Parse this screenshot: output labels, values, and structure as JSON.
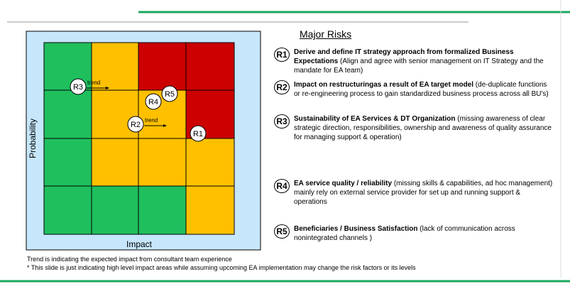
{
  "header": {
    "title": "Major Risks"
  },
  "matrix": {
    "x_label": "Impact",
    "y_label": "Probability",
    "markers": [
      {
        "label": "R3",
        "trend": "trend"
      },
      {
        "label": "R5"
      },
      {
        "label": "R4"
      },
      {
        "label": "R2",
        "trend": "trend"
      },
      {
        "label": "R1"
      }
    ]
  },
  "risks": [
    {
      "label": "R1",
      "title": "Derive and define IT strategy approach from formalized Business Expectations",
      "description": "(Align and agree with senior management on IT Strategy and the mandate for EA team)"
    },
    {
      "label": "R2",
      "title": "Impact on restructuringas a result of EA target model",
      "description": "(de-duplicate functions or re-engineering process to gain standardized business process across all BU's)"
    },
    {
      "label": "R3",
      "title": "Sustainability of EA Services & DT Organization",
      "description": "(missing awareness of clear strategic direction, responsibilities, ownership and awareness of quality assurance for managing support & operation)"
    },
    {
      "label": "R4",
      "title": "EA service quality / reliability",
      "description": "(missing skills & capabilities, ad hoc management) mainly rely on external service provider for set up and running support & operations"
    },
    {
      "label": "R5",
      "title": "Beneficiaries / Business Satisfaction",
      "description": "(lack of communication across nonintegrated channels )"
    }
  ],
  "footnotes": [
    "Trend is indicating the expected impact from consultant team experience",
    "* This slide is just indicating high level impact areas while assuming upcoming EA implementation may change the risk factors or its levels"
  ]
}
